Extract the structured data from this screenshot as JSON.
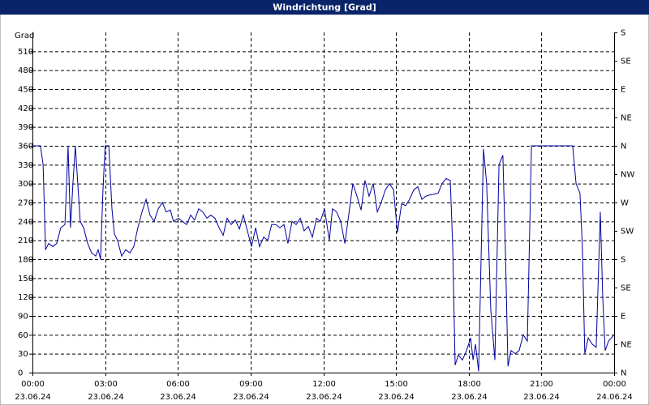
{
  "chart_data": {
    "type": "line",
    "title": "Windrichtung [Grad]",
    "y_label": "Grad",
    "x": [
      0,
      0.33,
      0.44,
      0.54,
      0.67,
      0.84,
      1.0,
      1.17,
      1.34,
      1.47,
      1.57,
      1.67,
      1.77,
      1.87,
      1.97,
      2.11,
      2.28,
      2.44,
      2.61,
      2.71,
      2.81,
      2.91,
      3.0,
      3.15,
      3.28,
      3.38,
      3.51,
      3.68,
      3.85,
      4.02,
      4.18,
      4.35,
      4.52,
      4.69,
      4.85,
      5.02,
      5.19,
      5.36,
      5.52,
      5.69,
      5.82,
      6.03,
      6.19,
      6.36,
      6.53,
      6.69,
      6.86,
      7.03,
      7.2,
      7.36,
      7.53,
      7.7,
      7.87,
      8.03,
      8.2,
      8.37,
      8.54,
      8.7,
      8.87,
      9.04,
      9.21,
      9.37,
      9.54,
      9.71,
      9.87,
      10.04,
      10.21,
      10.38,
      10.54,
      10.71,
      10.88,
      11.05,
      11.21,
      11.38,
      11.55,
      11.72,
      11.88,
      12.05,
      12.15,
      12.25,
      12.38,
      12.55,
      12.72,
      12.89,
      13.05,
      13.22,
      13.39,
      13.56,
      13.72,
      13.89,
      14.06,
      14.23,
      14.39,
      14.56,
      14.73,
      14.9,
      15.06,
      15.23,
      15.4,
      15.56,
      15.73,
      15.9,
      16.07,
      16.23,
      16.4,
      16.57,
      16.74,
      16.9,
      17.07,
      17.24,
      17.34,
      17.44,
      17.57,
      17.74,
      17.91,
      18.08,
      18.18,
      18.28,
      18.41,
      18.61,
      18.74,
      18.91,
      19.08,
      19.25,
      19.41,
      19.51,
      19.62,
      19.75,
      19.92,
      20.08,
      20.25,
      20.42,
      20.59,
      22.09,
      22.29,
      22.43,
      22.59,
      22.69,
      22.79,
      22.93,
      23.1,
      23.26,
      23.43,
      23.53,
      23.63,
      23.77,
      24.0
    ],
    "series": [
      {
        "name": "Windrichtung",
        "color": "#0000a0",
        "values": [
          360,
          360,
          330,
          195,
          205,
          200,
          205,
          230,
          235,
          360,
          230,
          300,
          360,
          300,
          240,
          230,
          205,
          190,
          185,
          195,
          180,
          290,
          360,
          360,
          260,
          220,
          210,
          185,
          195,
          190,
          200,
          230,
          255,
          275,
          250,
          240,
          260,
          270,
          255,
          258,
          240,
          245,
          240,
          235,
          250,
          242,
          260,
          255,
          245,
          250,
          245,
          230,
          218,
          245,
          235,
          242,
          228,
          250,
          225,
          200,
          230,
          200,
          215,
          210,
          235,
          235,
          230,
          235,
          205,
          240,
          235,
          245,
          225,
          232,
          215,
          245,
          240,
          260,
          235,
          210,
          260,
          255,
          240,
          205,
          250,
          300,
          280,
          258,
          305,
          280,
          300,
          255,
          270,
          290,
          300,
          290,
          222,
          268,
          265,
          275,
          290,
          295,
          275,
          280,
          282,
          283,
          285,
          300,
          308,
          305,
          200,
          12,
          28,
          20,
          35,
          55,
          20,
          45,
          2,
          355,
          300,
          100,
          20,
          330,
          345,
          200,
          10,
          35,
          30,
          35,
          60,
          50,
          360,
          360,
          360,
          300,
          285,
          200,
          30,
          55,
          45,
          40,
          255,
          120,
          35,
          50,
          60
        ]
      }
    ],
    "xlim": [
      0,
      24
    ],
    "xticks": [
      {
        "value": 0,
        "label": "00:00"
      },
      {
        "value": 3,
        "label": "03:00"
      },
      {
        "value": 6,
        "label": "06:00"
      },
      {
        "value": 9,
        "label": "09:00"
      },
      {
        "value": 12,
        "label": "12:00"
      },
      {
        "value": 15,
        "label": "15:00"
      },
      {
        "value": 18,
        "label": "18:00"
      },
      {
        "value": 21,
        "label": "21:00"
      },
      {
        "value": 24,
        "label": "00:00"
      }
    ],
    "xtick_dates": [
      "23.06.24",
      "23.06.24",
      "23.06.24",
      "23.06.24",
      "23.06.24",
      "23.06.24",
      "23.06.24",
      "23.06.24",
      "24.06.24"
    ],
    "ylim": [
      0,
      540
    ],
    "yticks": [
      0,
      30,
      60,
      90,
      120,
      150,
      180,
      210,
      240,
      270,
      300,
      330,
      360,
      390,
      420,
      450,
      480,
      510
    ],
    "y2lim": [
      0,
      540
    ],
    "y2ticks": [
      {
        "value": 0,
        "label": "N"
      },
      {
        "value": 45,
        "label": "NE"
      },
      {
        "value": 90,
        "label": "E"
      },
      {
        "value": 135,
        "label": "SE"
      },
      {
        "value": 180,
        "label": "S"
      },
      {
        "value": 225,
        "label": "SW"
      },
      {
        "value": 270,
        "label": "W"
      },
      {
        "value": 315,
        "label": "NW"
      },
      {
        "value": 360,
        "label": "N"
      },
      {
        "value": 405,
        "label": "NE"
      },
      {
        "value": 450,
        "label": "E"
      },
      {
        "value": 495,
        "label": "SE"
      },
      {
        "value": 540,
        "label": "S"
      }
    ],
    "grid": true
  }
}
